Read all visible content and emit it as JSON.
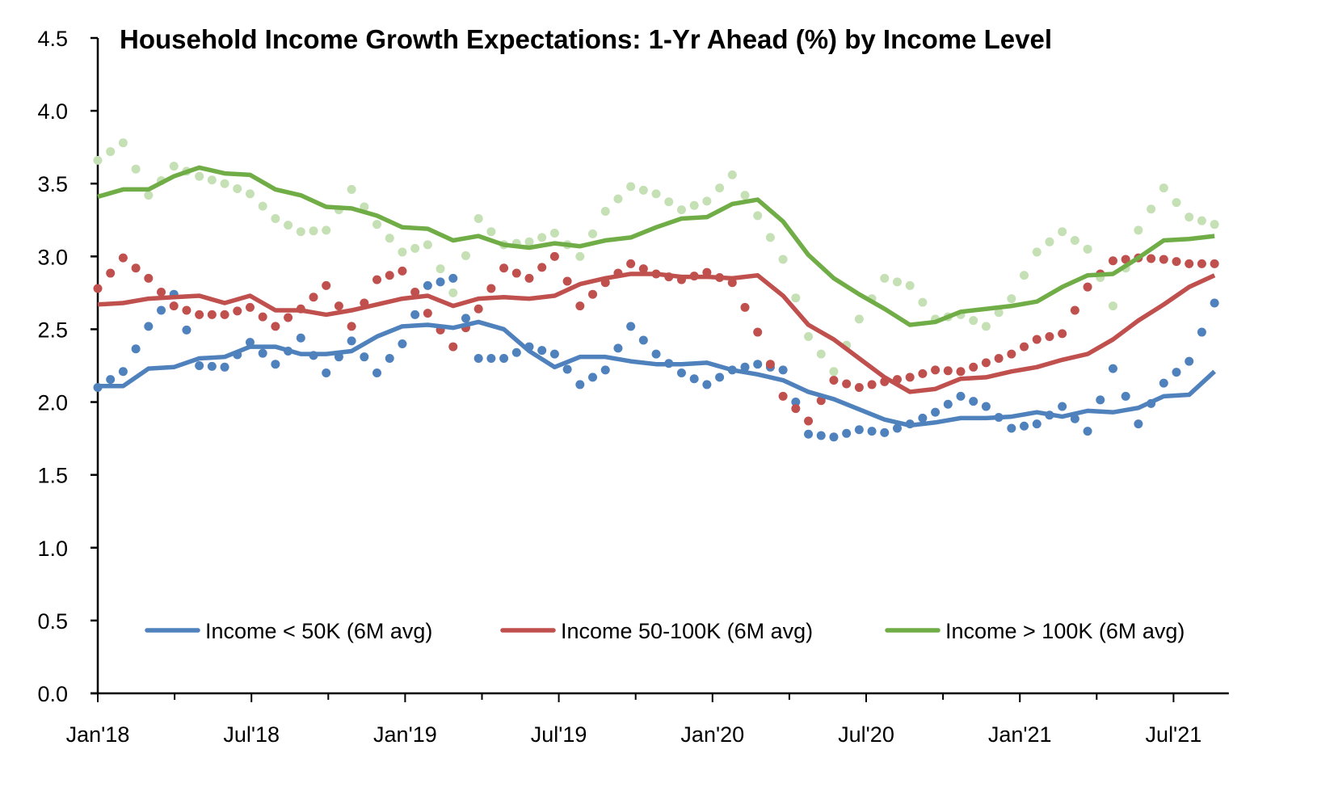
{
  "chart_data": {
    "type": "line",
    "title": "Household Income Growth Expectations: 1-Yr Ahead (%) by Income Level",
    "xlabel": "",
    "ylabel": "",
    "ylim": [
      0.0,
      4.5
    ],
    "yticks": [
      "0.0",
      "0.5",
      "1.0",
      "1.5",
      "2.0",
      "2.5",
      "3.0",
      "3.5",
      "4.0",
      "4.5"
    ],
    "ytick_values": [
      0.0,
      0.5,
      1.0,
      1.5,
      2.0,
      2.5,
      3.0,
      3.5,
      4.0,
      4.5
    ],
    "xticks": [
      {
        "label": "Jan'18",
        "month_index": 0
      },
      {
        "label": "Jul'18",
        "month_index": 6
      },
      {
        "label": "Jan'19",
        "month_index": 12
      },
      {
        "label": "Jul'19",
        "month_index": 18
      },
      {
        "label": "Jan'20",
        "month_index": 24
      },
      {
        "label": "Jul'20",
        "month_index": 30
      },
      {
        "label": "Jan'21",
        "month_index": 36
      },
      {
        "label": "Jul'21",
        "month_index": 42
      }
    ],
    "minor_tick_every_months": 3,
    "x_months_total": 44,
    "grid": false,
    "legend": {
      "placement": "bottom",
      "entries": [
        "Income < 50K (6M avg)",
        "Income 50-100K (6M avg)",
        "Income > 100K (6M avg)"
      ]
    },
    "series": [
      {
        "name": "Income < 50K (6M avg)",
        "style": "solid",
        "color": "#4F81BD",
        "start": "Jan'18",
        "values": [
          2.11,
          2.11,
          2.23,
          2.24,
          2.3,
          2.31,
          2.38,
          2.38,
          2.33,
          2.33,
          2.35,
          2.45,
          2.52,
          2.53,
          2.51,
          2.55,
          2.5,
          2.35,
          2.24,
          2.31,
          2.31,
          2.28,
          2.26,
          2.26,
          2.27,
          2.22,
          2.19,
          2.15,
          2.07,
          2.02,
          1.95,
          1.88,
          1.84,
          1.86,
          1.89,
          1.89,
          1.9,
          1.93,
          1.9,
          1.94,
          1.93,
          1.96,
          2.04,
          2.05,
          2.21
        ]
      },
      {
        "name": "Income 50-100K (6M avg)",
        "style": "solid",
        "color": "#C0504D",
        "start": "Jan'18",
        "values": [
          2.67,
          2.68,
          2.71,
          2.72,
          2.73,
          2.68,
          2.73,
          2.63,
          2.63,
          2.6,
          2.63,
          2.67,
          2.71,
          2.73,
          2.66,
          2.71,
          2.72,
          2.71,
          2.73,
          2.81,
          2.85,
          2.88,
          2.88,
          2.86,
          2.86,
          2.85,
          2.87,
          2.73,
          2.53,
          2.43,
          2.3,
          2.17,
          2.07,
          2.09,
          2.16,
          2.17,
          2.21,
          2.24,
          2.29,
          2.33,
          2.43,
          2.56,
          2.67,
          2.79,
          2.87
        ]
      },
      {
        "name": "Income > 100K (6M avg)",
        "style": "solid",
        "color": "#70AD47",
        "start": "Jan'18",
        "values": [
          3.41,
          3.46,
          3.46,
          3.55,
          3.61,
          3.57,
          3.56,
          3.46,
          3.42,
          3.34,
          3.33,
          3.28,
          3.2,
          3.19,
          3.11,
          3.14,
          3.08,
          3.06,
          3.09,
          3.07,
          3.11,
          3.13,
          3.2,
          3.26,
          3.27,
          3.36,
          3.39,
          3.24,
          3.01,
          2.85,
          2.74,
          2.64,
          2.53,
          2.55,
          2.62,
          2.64,
          2.66,
          2.69,
          2.79,
          2.87,
          2.88,
          2.99,
          3.11,
          3.12,
          3.14
        ]
      },
      {
        "name": "Income < 50K (monthly)",
        "style": "dotted",
        "color": "#4F81BD",
        "in_legend": false,
        "start": "Jan'18",
        "values": [
          2.1,
          2.21,
          2.52,
          2.74,
          2.25,
          2.24,
          2.41,
          2.26,
          2.44,
          2.2,
          2.42,
          2.2,
          2.4,
          2.8,
          2.85,
          2.3,
          2.3,
          2.38,
          2.33,
          2.12,
          2.22,
          2.52,
          2.33,
          2.2,
          2.12,
          2.22,
          2.26,
          2.22,
          1.78,
          1.76,
          1.81,
          1.79,
          1.85,
          1.93,
          2.04,
          1.97,
          1.82,
          1.85,
          1.97,
          1.8,
          2.23,
          1.85,
          2.13,
          2.28,
          2.68
        ]
      },
      {
        "name": "Income 50-100K (monthly)",
        "style": "dotted",
        "color": "#C0504D",
        "in_legend": false,
        "start": "Jan'18",
        "values": [
          2.78,
          2.99,
          2.85,
          2.66,
          2.6,
          2.6,
          2.65,
          2.52,
          2.64,
          2.8,
          2.52,
          2.84,
          2.9,
          2.61,
          2.38,
          2.64,
          2.92,
          2.85,
          3.0,
          2.66,
          2.82,
          2.95,
          2.88,
          2.84,
          2.89,
          2.82,
          2.48,
          2.04,
          1.87,
          2.15,
          2.1,
          2.14,
          2.17,
          2.22,
          2.21,
          2.27,
          2.33,
          2.43,
          2.47,
          2.79,
          2.97,
          2.99,
          2.98,
          2.95,
          2.95
        ]
      },
      {
        "name": "Income > 100K (monthly)",
        "style": "dotted",
        "color": "#C5E0B4",
        "in_legend": false,
        "start": "Jan'18",
        "values": [
          3.66,
          3.78,
          3.42,
          3.62,
          3.55,
          3.5,
          3.43,
          3.26,
          3.17,
          3.18,
          3.46,
          3.22,
          3.03,
          3.08,
          2.75,
          3.26,
          3.08,
          3.1,
          3.16,
          3.0,
          3.31,
          3.48,
          3.43,
          3.32,
          3.38,
          3.56,
          3.28,
          2.98,
          2.45,
          2.21,
          2.57,
          2.85,
          2.8,
          2.57,
          2.6,
          2.52,
          2.71,
          3.03,
          3.17,
          3.05,
          2.66,
          3.18,
          3.47,
          3.27,
          3.22
        ]
      }
    ]
  }
}
